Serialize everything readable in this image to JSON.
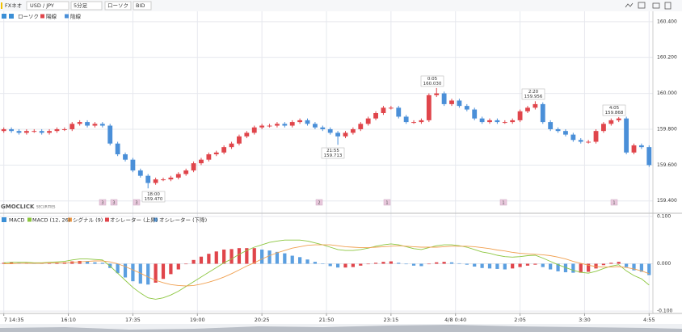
{
  "toolbar": {
    "product": "FXネオ",
    "pair": "USD / JPY",
    "interval": "5分足",
    "style": "ローソク",
    "side": "BID"
  },
  "chart_data": [
    {
      "type": "candlestick",
      "legend": "ローソク",
      "series": [
        {
          "name": "陽線",
          "color": "#e0454b"
        },
        {
          "name": "陰線",
          "color": "#4a8fd8"
        }
      ],
      "open": [
        159.79,
        159.8,
        159.79,
        159.78,
        159.79,
        159.79,
        159.78,
        159.79,
        159.8,
        159.8,
        159.83,
        159.84,
        159.82,
        159.83,
        159.82,
        159.72,
        159.66,
        159.63,
        159.57,
        159.54,
        159.5,
        159.52,
        159.52,
        159.53,
        159.55,
        159.57,
        159.61,
        159.63,
        159.66,
        159.67,
        159.7,
        159.72,
        159.76,
        159.78,
        159.81,
        159.82,
        159.82,
        159.83,
        159.82,
        159.84,
        159.85,
        159.83,
        159.81,
        159.8,
        159.78,
        159.76,
        159.78,
        159.8,
        159.83,
        159.86,
        159.89,
        159.92,
        159.92,
        159.87,
        159.84,
        159.84,
        159.85,
        159.99,
        160.0,
        159.94,
        159.96,
        159.93,
        159.91,
        159.86,
        159.84,
        159.85,
        159.84,
        159.84,
        159.85,
        159.9,
        159.92,
        159.94,
        159.84,
        159.8,
        159.79,
        159.77,
        159.74,
        159.73,
        159.73,
        159.79,
        159.83,
        159.85,
        159.86,
        159.67,
        159.71,
        159.7
      ],
      "high": [
        159.81,
        159.81,
        159.8,
        159.8,
        159.8,
        159.8,
        159.8,
        159.81,
        159.81,
        159.84,
        159.85,
        159.85,
        159.84,
        159.84,
        159.83,
        159.73,
        159.67,
        159.64,
        159.58,
        159.55,
        159.53,
        159.53,
        159.54,
        159.56,
        159.58,
        159.62,
        159.64,
        159.67,
        159.68,
        159.71,
        159.73,
        159.77,
        159.79,
        159.82,
        159.83,
        159.83,
        159.84,
        159.84,
        159.85,
        159.86,
        159.86,
        159.84,
        159.82,
        159.81,
        159.79,
        159.79,
        159.81,
        159.84,
        159.87,
        159.9,
        159.93,
        159.93,
        159.93,
        159.88,
        159.85,
        159.86,
        160.0,
        160.03,
        160.01,
        159.97,
        159.97,
        159.94,
        159.92,
        159.87,
        159.86,
        159.86,
        159.85,
        159.86,
        159.91,
        159.93,
        159.956,
        159.95,
        159.85,
        159.81,
        159.8,
        159.78,
        159.75,
        159.74,
        159.8,
        159.84,
        159.86,
        159.868,
        159.87,
        159.72,
        159.72,
        159.71
      ],
      "low": [
        159.78,
        159.78,
        159.77,
        159.77,
        159.78,
        159.77,
        159.77,
        159.78,
        159.79,
        159.79,
        159.82,
        159.81,
        159.81,
        159.81,
        159.71,
        159.65,
        159.62,
        159.56,
        159.53,
        159.47,
        159.49,
        159.51,
        159.51,
        159.52,
        159.54,
        159.56,
        159.6,
        159.62,
        159.65,
        159.66,
        159.69,
        159.71,
        159.75,
        159.77,
        159.8,
        159.81,
        159.81,
        159.81,
        159.81,
        159.83,
        159.82,
        159.8,
        159.79,
        159.77,
        159.713,
        159.75,
        159.77,
        159.79,
        159.82,
        159.85,
        159.88,
        159.91,
        159.86,
        159.83,
        159.83,
        159.83,
        159.84,
        159.98,
        159.93,
        159.93,
        159.92,
        159.9,
        159.85,
        159.83,
        159.83,
        159.83,
        159.83,
        159.83,
        159.84,
        159.89,
        159.91,
        159.83,
        159.79,
        159.78,
        159.76,
        159.73,
        159.72,
        159.72,
        159.72,
        159.78,
        159.82,
        159.84,
        159.66,
        159.66,
        159.69,
        159.59
      ],
      "close": [
        159.8,
        159.79,
        159.78,
        159.79,
        159.79,
        159.78,
        159.79,
        159.8,
        159.8,
        159.83,
        159.84,
        159.82,
        159.83,
        159.82,
        159.72,
        159.66,
        159.63,
        159.57,
        159.54,
        159.5,
        159.52,
        159.52,
        159.53,
        159.55,
        159.57,
        159.61,
        159.63,
        159.66,
        159.67,
        159.7,
        159.72,
        159.76,
        159.78,
        159.81,
        159.82,
        159.82,
        159.83,
        159.82,
        159.84,
        159.85,
        159.83,
        159.81,
        159.8,
        159.78,
        159.76,
        159.78,
        159.8,
        159.83,
        159.86,
        159.89,
        159.92,
        159.92,
        159.87,
        159.84,
        159.84,
        159.85,
        159.99,
        160.0,
        159.94,
        159.96,
        159.93,
        159.91,
        159.86,
        159.84,
        159.85,
        159.84,
        159.84,
        159.85,
        159.9,
        159.92,
        159.94,
        159.84,
        159.8,
        159.79,
        159.77,
        159.74,
        159.73,
        159.73,
        159.79,
        159.83,
        159.85,
        159.86,
        159.67,
        159.71,
        159.7,
        159.6
      ],
      "xlim": [
        -0.5,
        85.5
      ],
      "ylim": [
        159.34,
        160.44
      ],
      "yticks": [
        {
          "value": 160.4,
          "label": "160.400"
        },
        {
          "value": 160.2,
          "label": "160.200"
        },
        {
          "value": 160.0,
          "label": "160.000"
        },
        {
          "value": 159.8,
          "label": "159.800"
        },
        {
          "value": 159.6,
          "label": "159.600"
        },
        {
          "value": 159.4,
          "label": "159.400"
        }
      ],
      "grid": true,
      "annotations": [
        {
          "time": "18:00",
          "price": "159.470"
        },
        {
          "time": "21:55",
          "price": "159.713"
        },
        {
          "time": "0:05",
          "price": "160.030"
        },
        {
          "time": "2:20",
          "price": "159.956"
        },
        {
          "time": "4:05",
          "price": "159.868"
        }
      ],
      "markers": [
        "3",
        "3",
        "3",
        "2",
        "1",
        "1",
        "1"
      ],
      "watermark": "GMOCLICK",
      "watermark_sub": "SECURITIES"
    },
    {
      "type": "macd",
      "title": "MACD",
      "series": [
        {
          "name": "MACD (12, 26)",
          "color": "#8cc63f",
          "values": [
            0.002,
            0.003,
            0.003,
            0.003,
            0.002,
            0.002,
            0.003,
            0.004,
            0.005,
            0.008,
            0.01,
            0.01,
            0.009,
            0.008,
            -0.005,
            -0.02,
            -0.035,
            -0.05,
            -0.062,
            -0.072,
            -0.075,
            -0.072,
            -0.066,
            -0.058,
            -0.048,
            -0.038,
            -0.028,
            -0.018,
            -0.008,
            0.002,
            0.01,
            0.02,
            0.028,
            0.035,
            0.04,
            0.045,
            0.048,
            0.05,
            0.05,
            0.05,
            0.048,
            0.044,
            0.04,
            0.035,
            0.03,
            0.028,
            0.028,
            0.03,
            0.033,
            0.037,
            0.04,
            0.042,
            0.04,
            0.036,
            0.032,
            0.03,
            0.034,
            0.038,
            0.04,
            0.04,
            0.038,
            0.035,
            0.03,
            0.025,
            0.022,
            0.018,
            0.015,
            0.014,
            0.015,
            0.017,
            0.018,
            0.012,
            0.005,
            -0.002,
            -0.008,
            -0.014,
            -0.018,
            -0.02,
            -0.016,
            -0.01,
            -0.005,
            -0.002,
            -0.015,
            -0.025,
            -0.032,
            -0.045
          ]
        },
        {
          "name": "シグナル (9)",
          "color": "#f0a050",
          "values": [
            0,
            0,
            0.001,
            0.001,
            0.001,
            0.001,
            0.002,
            0.002,
            0.002,
            0.003,
            0.004,
            0.005,
            0.006,
            0.006,
            0.004,
            0,
            -0.006,
            -0.013,
            -0.02,
            -0.028,
            -0.035,
            -0.04,
            -0.044,
            -0.046,
            -0.047,
            -0.046,
            -0.043,
            -0.039,
            -0.034,
            -0.028,
            -0.021,
            -0.013,
            -0.005,
            0.002,
            0.01,
            0.017,
            0.023,
            0.028,
            0.033,
            0.036,
            0.039,
            0.04,
            0.04,
            0.04,
            0.038,
            0.036,
            0.035,
            0.034,
            0.034,
            0.035,
            0.036,
            0.037,
            0.038,
            0.037,
            0.036,
            0.035,
            0.035,
            0.035,
            0.036,
            0.037,
            0.037,
            0.037,
            0.036,
            0.034,
            0.032,
            0.029,
            0.027,
            0.024,
            0.022,
            0.021,
            0.02,
            0.019,
            0.017,
            0.014,
            0.01,
            0.005,
            0.001,
            -0.003,
            -0.006,
            -0.007,
            -0.007,
            -0.006,
            -0.008,
            -0.011,
            -0.015,
            -0.021
          ]
        }
      ],
      "oscillator": {
        "names": [
          "オシレーター (上昇)",
          "オシレーター (下降)"
        ],
        "colors": [
          "#e0454b",
          "#5b9fe0"
        ],
        "values": [
          0.002,
          0.003,
          0.002,
          0.002,
          0.001,
          0.001,
          0.001,
          0.002,
          0.003,
          0.005,
          0.006,
          0.005,
          0.003,
          0.002,
          -0.009,
          -0.02,
          -0.029,
          -0.037,
          -0.042,
          -0.044,
          -0.04,
          -0.032,
          -0.022,
          -0.012,
          -0.001,
          0.008,
          0.015,
          0.021,
          0.026,
          0.03,
          0.031,
          0.033,
          0.033,
          0.033,
          0.03,
          0.028,
          0.025,
          0.022,
          0.017,
          0.014,
          0.009,
          0.004,
          0,
          -0.005,
          -0.008,
          -0.008,
          -0.007,
          -0.004,
          -0.001,
          0.002,
          0.004,
          0.005,
          0.002,
          -0.001,
          -0.004,
          -0.005,
          -0.001,
          0.003,
          0.004,
          0.003,
          0.001,
          -0.002,
          -0.006,
          -0.009,
          -0.01,
          -0.011,
          -0.012,
          -0.01,
          -0.007,
          -0.004,
          -0.002,
          -0.007,
          -0.012,
          -0.016,
          -0.018,
          -0.019,
          -0.019,
          -0.017,
          -0.01,
          -0.003,
          0.002,
          0.004,
          -0.007,
          -0.014,
          -0.017,
          -0.024
        ]
      },
      "xlim": [
        -0.5,
        85.5
      ],
      "ylim": [
        -0.105,
        0.105
      ],
      "yticks": [
        {
          "value": 0.1,
          "label": "0.100"
        },
        {
          "value": 0,
          "label": "0.000"
        },
        {
          "value": -0.1,
          "label": "-0.100"
        }
      ],
      "xticks": [
        {
          "value": 0,
          "label": "7 14:35"
        },
        {
          "value": 8.5,
          "label": "16:10"
        },
        {
          "value": 17,
          "label": "17:35"
        },
        {
          "value": 25.5,
          "label": "19:00"
        },
        {
          "value": 34,
          "label": "20:25"
        },
        {
          "value": 42.5,
          "label": "21:50"
        },
        {
          "value": 51,
          "label": "23:15"
        },
        {
          "value": 59.5,
          "label": "4/8 0:40"
        },
        {
          "value": 68,
          "label": "2:05"
        },
        {
          "value": 76.5,
          "label": "3:30"
        },
        {
          "value": 85,
          "label": "4:55"
        }
      ]
    }
  ]
}
